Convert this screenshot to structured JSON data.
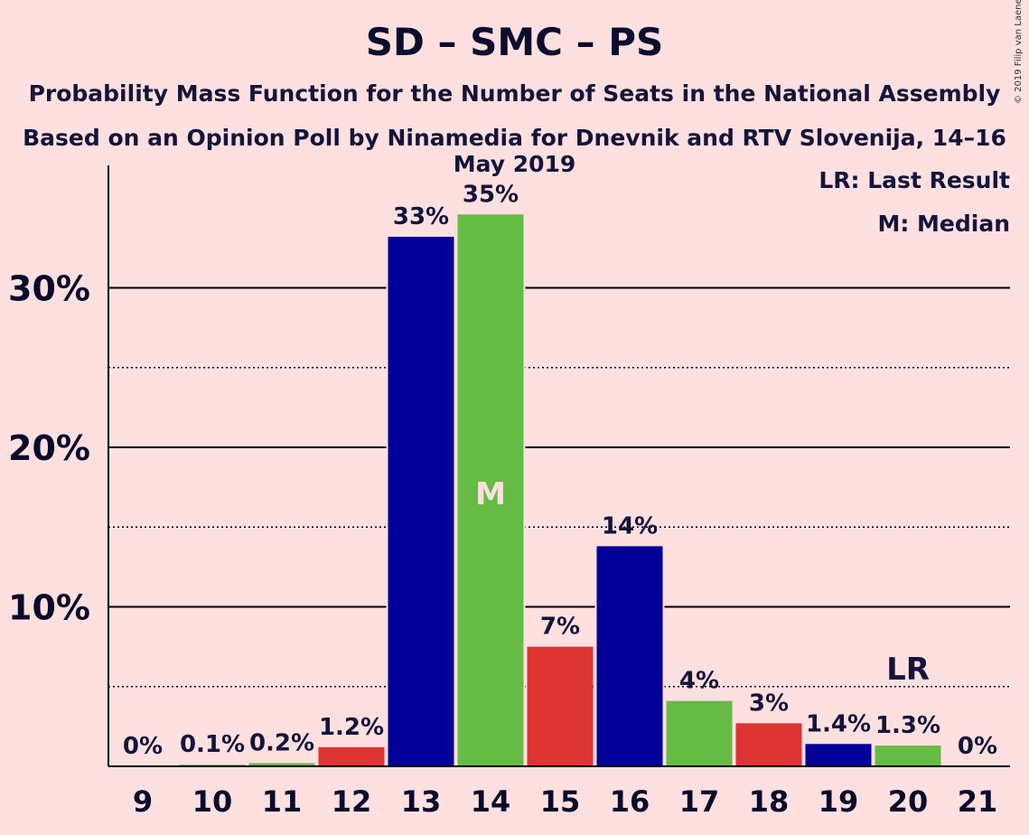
{
  "header": {
    "title": "SD – SMC – PS",
    "subtitle": "Probability Mass Function for the Number of Seats in the National Assembly",
    "subtitle2": "Based on an Opinion Poll by Ninamedia for Dnevnik and RTV Slovenija, 14–16 May 2019",
    "copyright": "© 2019 Filip van Laenen"
  },
  "legend": {
    "last_result": "LR: Last Result",
    "median": "M: Median"
  },
  "colors": {
    "background": "#ffe0e0",
    "blue": "#000099",
    "green": "#66bb44",
    "red": "#dd3333",
    "axis": "#000000"
  },
  "chart_data": {
    "type": "bar",
    "title": "SD – SMC – PS",
    "xlabel": "",
    "ylabel": "",
    "ylim": [
      0,
      37.5
    ],
    "yticks": [
      10,
      20,
      30
    ],
    "ytick_labels": [
      "10%",
      "20%",
      "30%"
    ],
    "minor_gridlines": [
      5,
      15,
      25
    ],
    "grid": true,
    "categories": [
      "9",
      "10",
      "11",
      "12",
      "13",
      "14",
      "15",
      "16",
      "17",
      "18",
      "19",
      "20",
      "21"
    ],
    "values": [
      0,
      0.1,
      0.2,
      1.2,
      33.2,
      34.6,
      7.5,
      13.8,
      4.1,
      2.7,
      1.4,
      1.3,
      0
    ],
    "labels": [
      "0%",
      "0.1%",
      "0.2%",
      "1.2%",
      "33%",
      "35%",
      "7%",
      "14%",
      "4%",
      "3%",
      "1.4%",
      "1.3%",
      "0%"
    ],
    "bar_colors": [
      "blue",
      "green",
      "green",
      "red",
      "blue",
      "green",
      "red",
      "blue",
      "green",
      "red",
      "blue",
      "green",
      "red"
    ],
    "median": {
      "category": "14",
      "label": "M"
    },
    "last_result": {
      "category": "20",
      "label": "LR"
    }
  }
}
